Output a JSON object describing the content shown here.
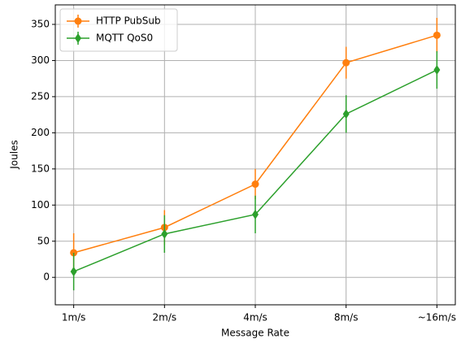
{
  "chart_data": {
    "type": "line",
    "xlabel": "Message Rate",
    "ylabel": "Joules",
    "categories": [
      "1m/s",
      "2m/s",
      "4m/s",
      "8m/s",
      "~16m/s"
    ],
    "series": [
      {
        "name": "HTTP PubSub",
        "color": "#ff7f0e",
        "marker": "circle",
        "values": [
          34,
          69,
          129,
          297,
          335
        ],
        "errors": [
          27,
          24,
          21,
          22,
          24
        ]
      },
      {
        "name": "MQTT QoS0",
        "color": "#2ca02c",
        "marker": "diamond",
        "values": [
          8,
          60,
          87,
          226,
          287
        ],
        "errors": [
          26,
          26,
          26,
          26,
          26
        ]
      }
    ],
    "ylim": [
      -38,
      377
    ],
    "yticks": [
      0,
      50,
      100,
      150,
      200,
      250,
      300,
      350
    ],
    "grid": true,
    "legend": "upper left"
  }
}
